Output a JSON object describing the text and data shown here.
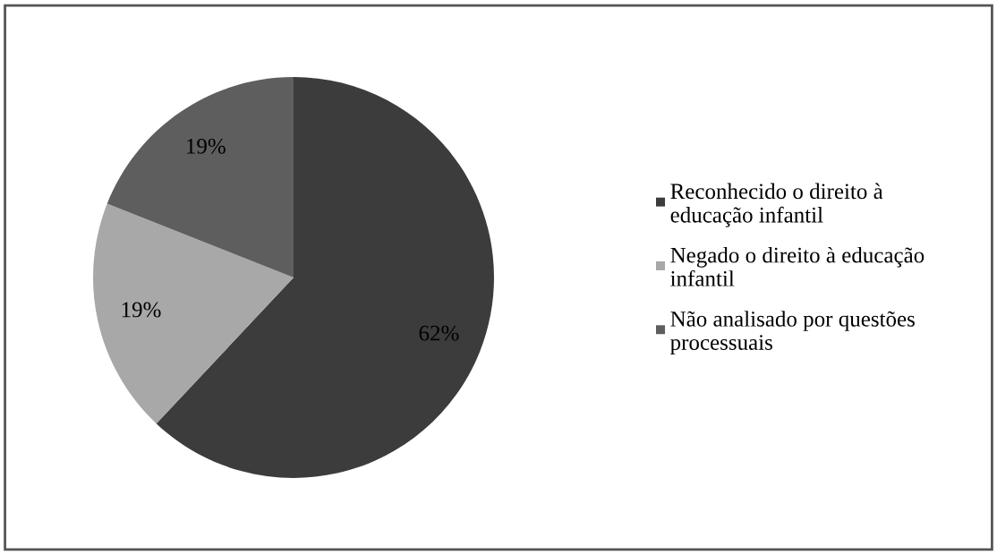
{
  "chart_data": {
    "type": "pie",
    "categories": [
      "Reconhecido o direito à educação infantil",
      "Negado o direito à educação infantil",
      "Não analisado por questões processuais"
    ],
    "values": [
      62,
      19,
      19
    ],
    "colors": [
      "#3c3c3c",
      "#a8a8a8",
      "#5e5e5e"
    ],
    "value_labels": [
      "62%",
      "19%",
      "19%"
    ],
    "legend": "right"
  }
}
